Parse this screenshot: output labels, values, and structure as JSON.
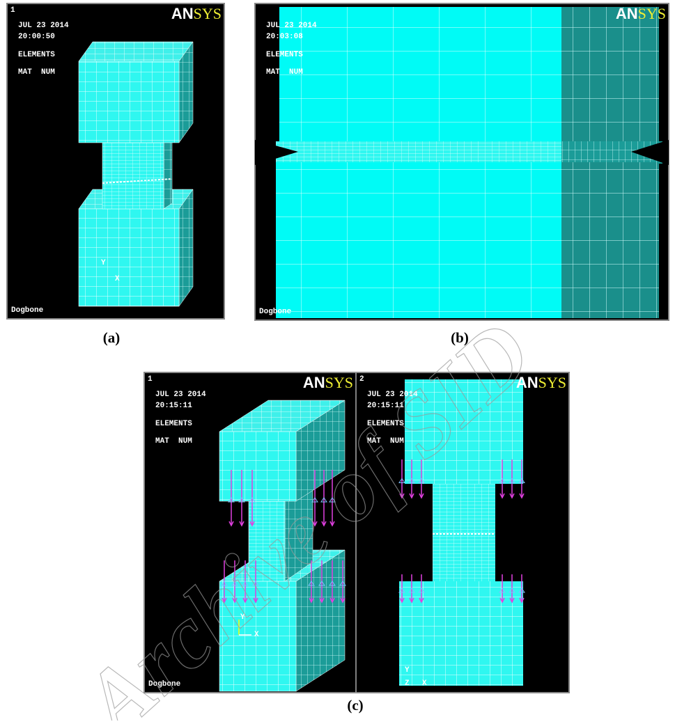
{
  "panels": [
    {
      "caption": "(a)",
      "views": [
        {
          "number": "1",
          "date": "JUL 23 2014",
          "time": "20:00:50",
          "mode": "ELEMENTS",
          "label": "MAT  NUM",
          "title": "Dogbone",
          "logo_main": "AN",
          "logo_accent": "SYS",
          "axes": [
            "Y",
            "X"
          ]
        }
      ]
    },
    {
      "caption": "(b)",
      "views": [
        {
          "date": "JUL 23 2014",
          "time": "20:03:08",
          "mode": "ELEMENTS",
          "label": "MAT  NUM",
          "title": "Dogbone",
          "logo_main": "AN",
          "logo_accent": "SYS"
        }
      ]
    },
    {
      "caption": "(c)",
      "views": [
        {
          "number": "1",
          "date": "JUL 23 2014",
          "time": "20:15:11",
          "mode": "ELEMENTS",
          "label": "MAT  NUM",
          "title": "Dogbone",
          "logo_main": "AN",
          "logo_accent": "SYS",
          "axes": [
            "Y",
            "X"
          ]
        },
        {
          "number": "2",
          "date": "JUL 23 2014",
          "time": "20:15:11",
          "mode": "ELEMENTS",
          "label": "MAT  NUM",
          "logo_main": "AN",
          "logo_accent": "SYS",
          "axes": [
            "Y",
            "Z",
            "X"
          ]
        }
      ]
    }
  ],
  "watermark": "Archive of SID"
}
